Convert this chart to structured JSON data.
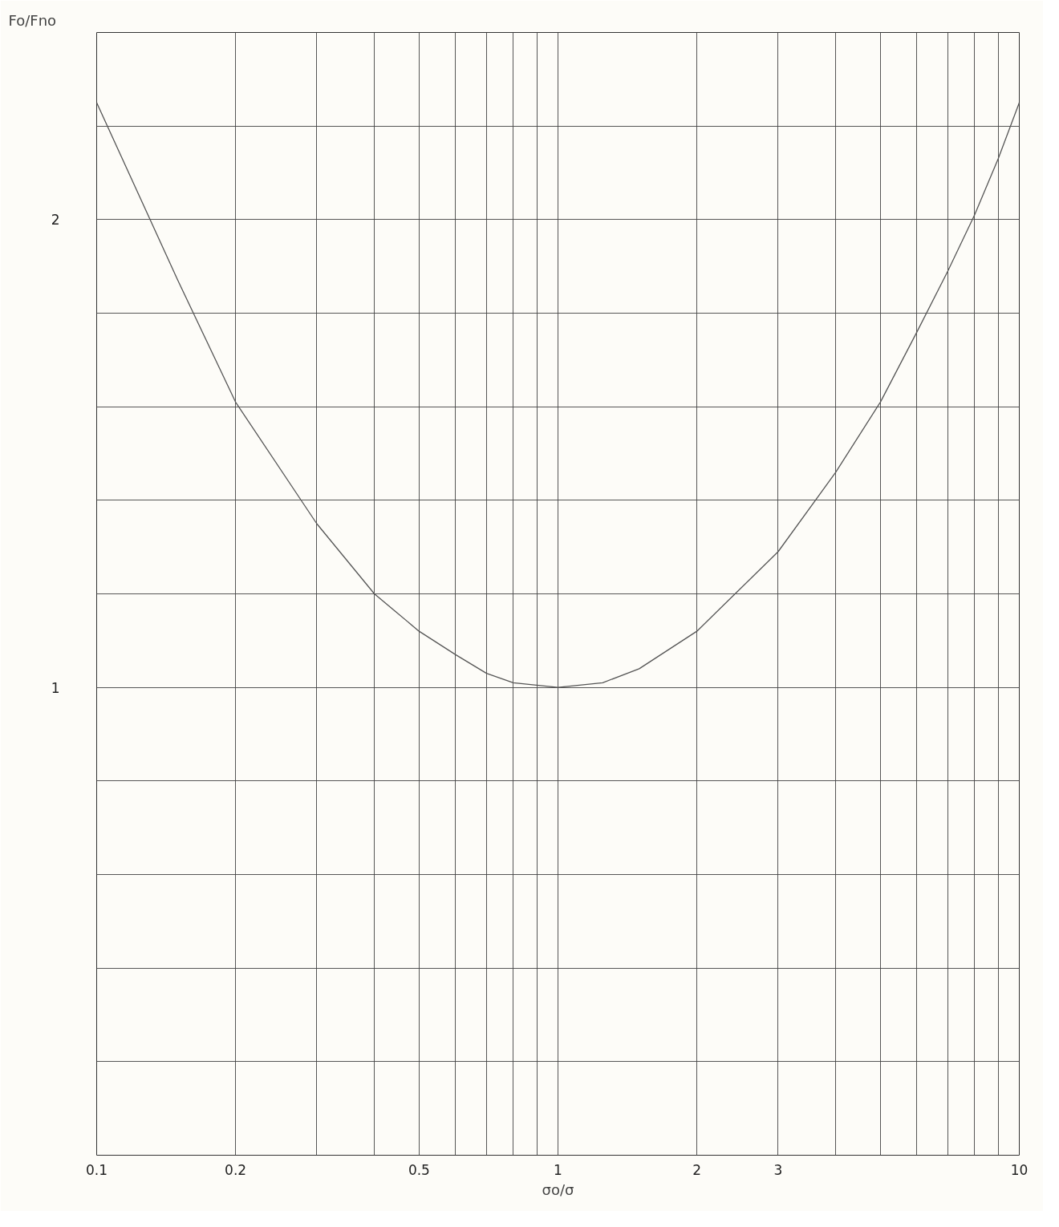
{
  "chart_data": {
    "type": "line",
    "xlabel": "σo/σ",
    "ylabel": "Fo/Fno",
    "log": "x",
    "grid": true,
    "marker": "none",
    "line_style": "solid",
    "x": [
      0.1,
      0.15,
      0.2,
      0.3,
      0.4,
      0.5,
      0.6,
      0.7,
      0.8,
      1,
      1.25,
      1.5,
      2,
      3,
      4,
      5,
      6,
      7,
      8,
      9,
      10
    ],
    "series": [
      {
        "color": "#555555",
        "values": [
          2.25,
          1.87,
          1.61,
          1.35,
          1.2,
          1.12,
          1.07,
          1.03,
          1.01,
          1.0,
          1.01,
          1.04,
          1.12,
          1.29,
          1.46,
          1.61,
          1.76,
          1.89,
          2.01,
          2.13,
          2.25
        ]
      }
    ],
    "xlim": [
      0.1,
      10
    ],
    "ylim": [
      0,
      2.4
    ],
    "xticks": [
      0.1,
      0.2,
      {
        "value": 0.3,
        "label": null
      },
      {
        "value": 0.4,
        "label": null
      },
      0.5,
      {
        "value": 0.6,
        "label": null
      },
      {
        "value": 0.7,
        "label": null
      },
      {
        "value": 0.8,
        "label": null
      },
      {
        "value": 0.9,
        "label": null
      },
      1,
      2,
      3,
      {
        "value": 4,
        "label": null
      },
      {
        "value": 5,
        "label": null
      },
      {
        "value": 6,
        "label": null
      },
      {
        "value": 7,
        "label": null
      },
      {
        "value": 8,
        "label": null
      },
      {
        "value": 9,
        "label": null
      },
      10
    ],
    "yticks": [
      {
        "value": 0.2,
        "label": null
      },
      {
        "value": 0.4,
        "label": null
      },
      {
        "value": 0.6,
        "label": null
      },
      {
        "value": 0.8,
        "label": null
      },
      1,
      {
        "value": 1.2,
        "label": null
      },
      {
        "value": 1.4,
        "label": null
      },
      {
        "value": 1.6,
        "label": null
      },
      {
        "value": 1.8,
        "label": null
      },
      2,
      {
        "value": 2.2,
        "label": null
      }
    ]
  }
}
